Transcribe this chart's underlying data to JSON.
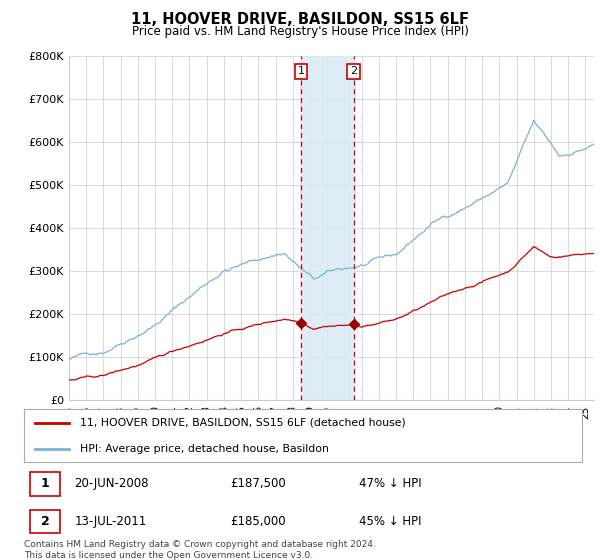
{
  "title": "11, HOOVER DRIVE, BASILDON, SS15 6LF",
  "subtitle": "Price paid vs. HM Land Registry's House Price Index (HPI)",
  "hpi_label": "HPI: Average price, detached house, Basildon",
  "price_label": "11, HOOVER DRIVE, BASILDON, SS15 6LF (detached house)",
  "footer": "Contains HM Land Registry data © Crown copyright and database right 2024.\nThis data is licensed under the Open Government Licence v3.0.",
  "transactions": [
    {
      "id": 1,
      "date": "20-JUN-2008",
      "price": 187500,
      "hpi_pct": "47% ↓ HPI",
      "x_year": 2008.47
    },
    {
      "id": 2,
      "date": "13-JUL-2011",
      "price": 185000,
      "hpi_pct": "45% ↓ HPI",
      "x_year": 2011.54
    }
  ],
  "hpi_color": "#7ab3d4",
  "price_color": "#cc0000",
  "marker_color": "#990000",
  "shade_color": "#daeaf5",
  "vline_color": "#cc0000",
  "ylim": [
    0,
    800000
  ],
  "xlim_start": 1995.0,
  "xlim_end": 2025.5,
  "yticks": [
    0,
    100000,
    200000,
    300000,
    400000,
    500000,
    600000,
    700000,
    800000
  ]
}
